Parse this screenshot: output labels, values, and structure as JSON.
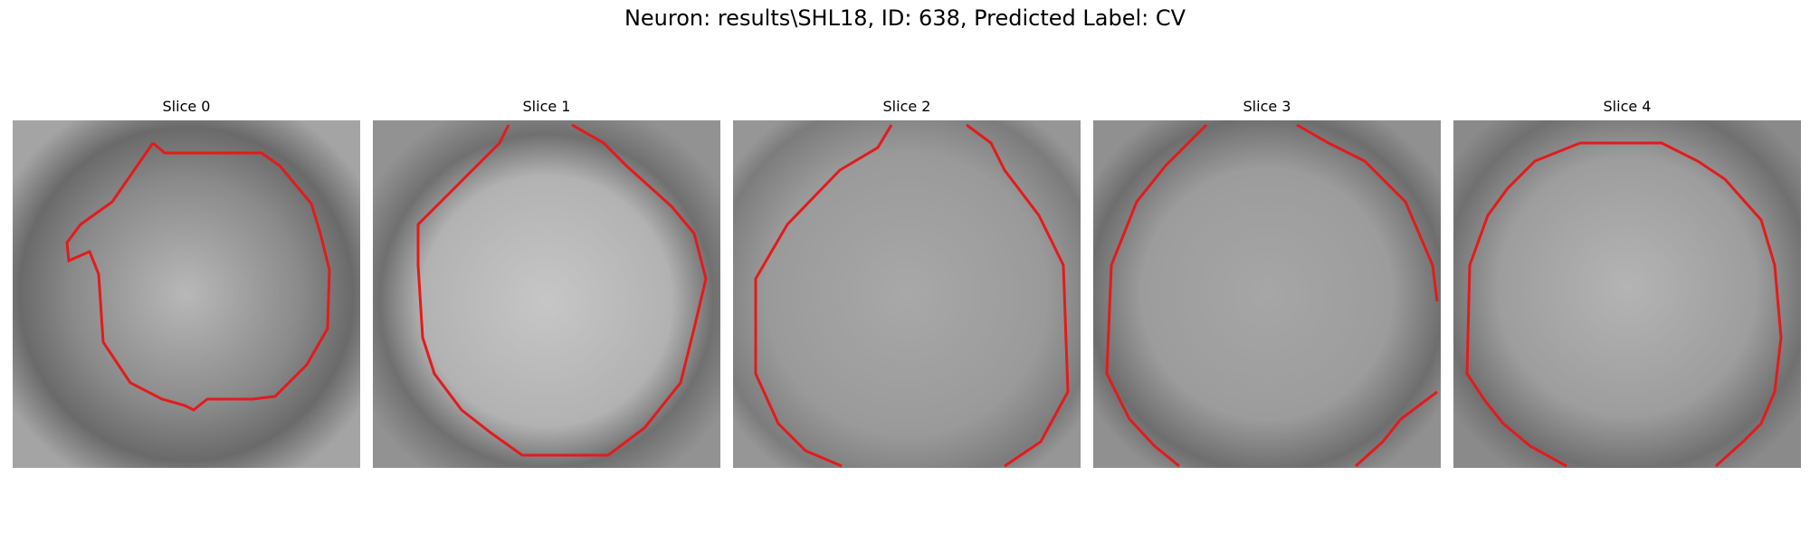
{
  "figure": {
    "title": "Neuron: results\\SHL18, ID: 638, Predicted Label: CV"
  },
  "colors": {
    "contour": "#e41a1c",
    "background": "#ffffff"
  },
  "panels": [
    {
      "label": "Slice 0"
    },
    {
      "label": "Slice 1"
    },
    {
      "label": "Slice 2"
    },
    {
      "label": "Slice 3"
    },
    {
      "label": "Slice 4"
    }
  ]
}
